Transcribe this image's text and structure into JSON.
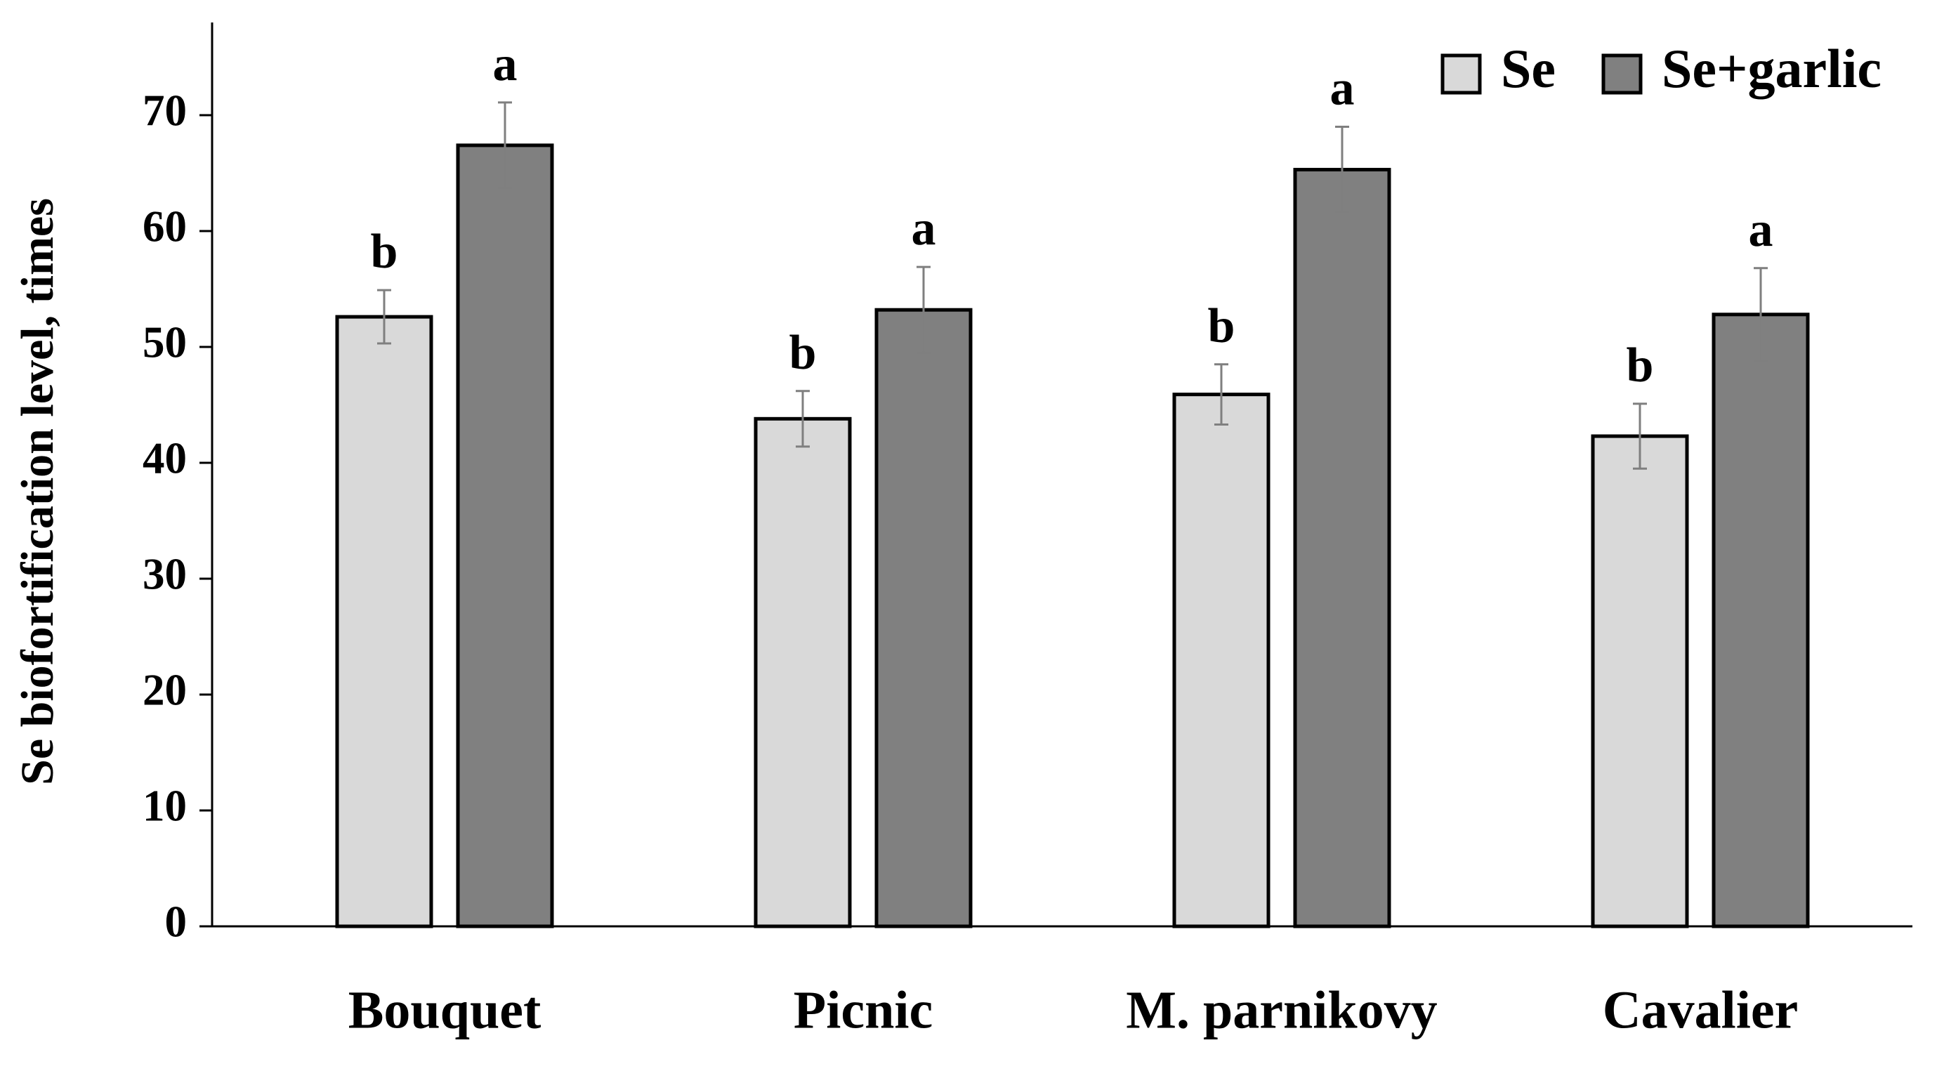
{
  "chart_data": {
    "type": "bar",
    "y_label": "Se biofortification level, times",
    "categories": [
      "Bouquet",
      "Picnic",
      "M. parnikovy",
      "Cavalier"
    ],
    "series": [
      {
        "name": "Se",
        "color": "#d9d9d9",
        "values": [
          52.6,
          43.8,
          45.9,
          42.3
        ],
        "errors": [
          2.3,
          2.4,
          2.6,
          2.8
        ],
        "labels": [
          "b",
          "b",
          "b",
          "b"
        ]
      },
      {
        "name": "Se+garlic",
        "color": "#808080",
        "values": [
          67.4,
          53.2,
          65.3,
          52.8
        ],
        "errors": [
          3.7,
          3.7,
          3.7,
          4.0
        ],
        "labels": [
          "a",
          "a",
          "a",
          "a"
        ]
      }
    ],
    "ylim": [
      0,
      78
    ],
    "yticks": [
      0,
      10,
      20,
      30,
      40,
      50,
      60,
      70
    ],
    "legend": "top-right"
  }
}
